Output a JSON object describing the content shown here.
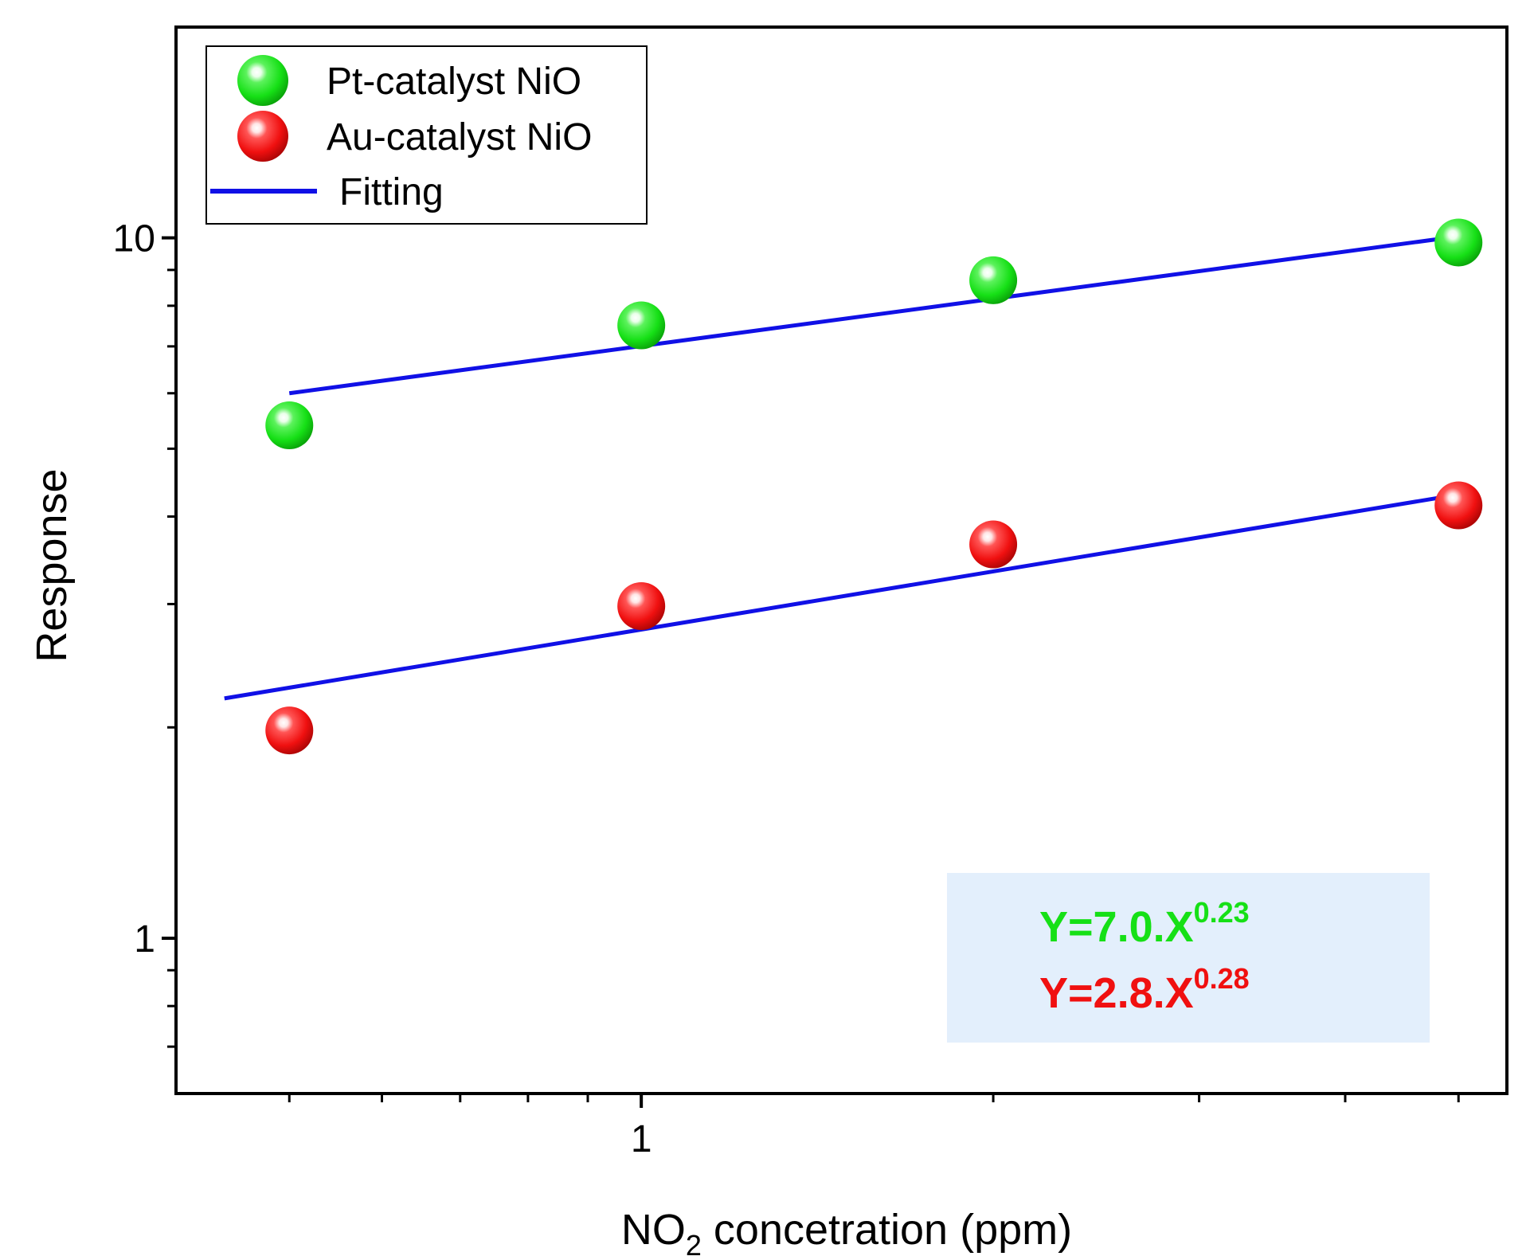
{
  "chart_data": {
    "type": "scatter",
    "x_scale": "log",
    "y_scale": "log",
    "xlabel_main": "NO",
    "xlabel_sub": "2",
    "xlabel_rest": " concetration (ppm)",
    "ylabel": "Response",
    "xlim": [
      0.4,
      5.5
    ],
    "ylim": [
      0.6,
      20
    ],
    "x_major_ticks": [
      {
        "value": 1,
        "label": "1"
      }
    ],
    "x_minor_ticks": [
      0.5,
      0.6,
      0.7,
      0.8,
      0.9,
      2,
      3,
      4,
      5
    ],
    "y_major_ticks": [
      {
        "value": 1,
        "label": "1"
      },
      {
        "value": 10,
        "label": "10"
      }
    ],
    "y_minor_ticks": [
      0.7,
      0.8,
      0.9,
      2,
      3,
      4,
      5,
      6,
      7,
      8,
      9
    ],
    "series": [
      {
        "name": "Pt-catalyst NiO",
        "color": "#16e016",
        "x": [
          0.5,
          1,
          2,
          5
        ],
        "y": [
          5.4,
          7.5,
          8.7,
          9.85
        ],
        "fit": {
          "x": [
            0.5,
            5
          ],
          "y": [
            6.0,
            10.05
          ]
        }
      },
      {
        "name": "Au-catalyst NiO",
        "color": "#f01010",
        "x": [
          0.5,
          1,
          2,
          5
        ],
        "y": [
          1.98,
          2.98,
          3.65,
          4.15
        ],
        "fit": {
          "x": [
            0.44,
            5
          ],
          "y": [
            2.2,
            4.3
          ]
        }
      }
    ],
    "fit_label": "Fitting",
    "fit_color": "#1010e6",
    "equations": [
      {
        "base": "Y=7.0.X",
        "exp": "0.23",
        "color": "#16e016"
      },
      {
        "base": "Y=2.8.X",
        "exp": "0.28",
        "color": "#f01010"
      }
    ],
    "equation_box_color": "#e3effc",
    "legend_position": "top-left",
    "equation_position": "bottom-right"
  }
}
